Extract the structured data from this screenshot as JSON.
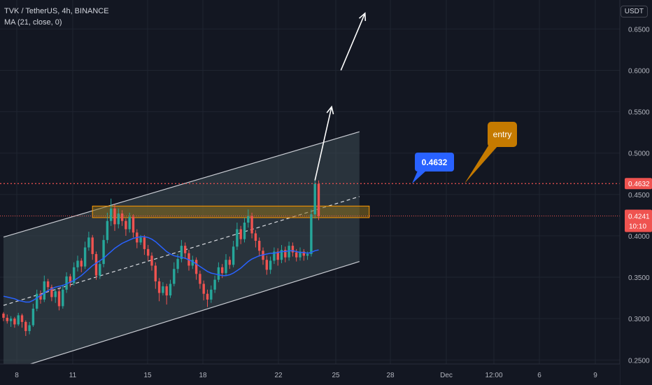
{
  "legend": {
    "symbol": "TVK / TetherUS, 4h, BINANCE",
    "indicator": "MA (21, close, 0)"
  },
  "currency": "USDT",
  "colors": {
    "background": "#131722",
    "up": "#26a69a",
    "down": "#ef5350",
    "ma": "#2962ff",
    "channel_fill": "#3d4a52",
    "zone_fill": "#8a6d1e",
    "zone_border": "#ff9800",
    "entry_bubble": "#c57a00",
    "price_bubble": "#2962ff",
    "price_line": "#ef5350"
  },
  "annotations": {
    "entry": "entry",
    "price_callout": "0.4632"
  },
  "price_labels": {
    "last": "0.4632",
    "current": "0.4241",
    "countdown": "10:10"
  },
  "chart_data": {
    "type": "candlestick",
    "x_ticks": [
      "8",
      "11",
      "15",
      "18",
      "22",
      "25",
      "28",
      "Dec",
      "12:00",
      "6",
      "9"
    ],
    "y_ticks": [
      "0.6500",
      "0.6000",
      "0.5500",
      "0.5000",
      "0.4500",
      "0.4000",
      "0.3500",
      "0.3000",
      "0.2500"
    ],
    "ylim": [
      0.235,
      0.685
    ],
    "levels": {
      "last_price": 0.4632,
      "current_price": 0.4241
    },
    "channel": {
      "upper": [
        [
          0,
          0.3985
        ],
        [
          96,
          0.5258
        ]
      ],
      "lower": [
        [
          0,
          0.235
        ],
        [
          96,
          0.369
        ]
      ],
      "mid": [
        [
          0,
          0.316
        ],
        [
          96,
          0.4475
        ]
      ]
    },
    "zone": {
      "x": [
        24,
        96
      ],
      "y": [
        0.422,
        0.436
      ]
    },
    "arrows": [
      {
        "from": [
          84,
          0.467
        ],
        "to": [
          88.5,
          0.556
        ]
      },
      {
        "from": [
          91,
          0.6
        ],
        "to": [
          97.5,
          0.669
        ]
      }
    ],
    "candles": [
      [
        0.306,
        0.301,
        0.308,
        0.297
      ],
      [
        0.301,
        0.297,
        0.305,
        0.294
      ],
      [
        0.297,
        0.3,
        0.303,
        0.29
      ],
      [
        0.3,
        0.293,
        0.302,
        0.289
      ],
      [
        0.293,
        0.304,
        0.307,
        0.291
      ],
      [
        0.304,
        0.296,
        0.306,
        0.289
      ],
      [
        0.296,
        0.285,
        0.298,
        0.279
      ],
      [
        0.285,
        0.292,
        0.296,
        0.281
      ],
      [
        0.292,
        0.312,
        0.318,
        0.29
      ],
      [
        0.312,
        0.33,
        0.335,
        0.309
      ],
      [
        0.33,
        0.323,
        0.334,
        0.318
      ],
      [
        0.323,
        0.345,
        0.352,
        0.32
      ],
      [
        0.345,
        0.338,
        0.348,
        0.332
      ],
      [
        0.338,
        0.326,
        0.341,
        0.321
      ],
      [
        0.326,
        0.333,
        0.336,
        0.319
      ],
      [
        0.333,
        0.315,
        0.336,
        0.31
      ],
      [
        0.315,
        0.335,
        0.341,
        0.312
      ],
      [
        0.335,
        0.351,
        0.356,
        0.331
      ],
      [
        0.351,
        0.343,
        0.354,
        0.338
      ],
      [
        0.343,
        0.362,
        0.368,
        0.34
      ],
      [
        0.362,
        0.37,
        0.376,
        0.357
      ],
      [
        0.37,
        0.363,
        0.373,
        0.356
      ],
      [
        0.363,
        0.386,
        0.393,
        0.36
      ],
      [
        0.386,
        0.398,
        0.405,
        0.382
      ],
      [
        0.398,
        0.378,
        0.401,
        0.371
      ],
      [
        0.378,
        0.352,
        0.381,
        0.347
      ],
      [
        0.352,
        0.366,
        0.37,
        0.348
      ],
      [
        0.366,
        0.395,
        0.401,
        0.362
      ],
      [
        0.395,
        0.418,
        0.428,
        0.391
      ],
      [
        0.418,
        0.433,
        0.445,
        0.412
      ],
      [
        0.433,
        0.414,
        0.438,
        0.406
      ],
      [
        0.414,
        0.427,
        0.433,
        0.409
      ],
      [
        0.427,
        0.418,
        0.431,
        0.412
      ],
      [
        0.418,
        0.408,
        0.421,
        0.4
      ],
      [
        0.408,
        0.423,
        0.428,
        0.404
      ],
      [
        0.423,
        0.404,
        0.426,
        0.398
      ],
      [
        0.404,
        0.392,
        0.408,
        0.385
      ],
      [
        0.392,
        0.398,
        0.401,
        0.389
      ],
      [
        0.398,
        0.384,
        0.401,
        0.377
      ],
      [
        0.384,
        0.376,
        0.389,
        0.37
      ],
      [
        0.376,
        0.364,
        0.38,
        0.358
      ],
      [
        0.364,
        0.345,
        0.368,
        0.336
      ],
      [
        0.345,
        0.331,
        0.349,
        0.321
      ],
      [
        0.331,
        0.339,
        0.344,
        0.328
      ],
      [
        0.339,
        0.328,
        0.342,
        0.317
      ],
      [
        0.328,
        0.342,
        0.347,
        0.325
      ],
      [
        0.342,
        0.36,
        0.368,
        0.339
      ],
      [
        0.36,
        0.372,
        0.378,
        0.355
      ],
      [
        0.372,
        0.388,
        0.395,
        0.368
      ],
      [
        0.388,
        0.379,
        0.392,
        0.372
      ],
      [
        0.379,
        0.364,
        0.383,
        0.358
      ],
      [
        0.364,
        0.371,
        0.376,
        0.36
      ],
      [
        0.371,
        0.354,
        0.374,
        0.347
      ],
      [
        0.354,
        0.342,
        0.358,
        0.336
      ],
      [
        0.342,
        0.33,
        0.346,
        0.322
      ],
      [
        0.33,
        0.323,
        0.335,
        0.314
      ],
      [
        0.323,
        0.335,
        0.34,
        0.319
      ],
      [
        0.335,
        0.347,
        0.352,
        0.331
      ],
      [
        0.347,
        0.362,
        0.368,
        0.344
      ],
      [
        0.362,
        0.355,
        0.366,
        0.349
      ],
      [
        0.355,
        0.371,
        0.378,
        0.352
      ],
      [
        0.371,
        0.365,
        0.375,
        0.36
      ],
      [
        0.365,
        0.387,
        0.394,
        0.362
      ],
      [
        0.387,
        0.408,
        0.416,
        0.383
      ],
      [
        0.408,
        0.396,
        0.412,
        0.39
      ],
      [
        0.396,
        0.416,
        0.422,
        0.392
      ],
      [
        0.416,
        0.424,
        0.432,
        0.41
      ],
      [
        0.424,
        0.403,
        0.428,
        0.397
      ],
      [
        0.403,
        0.394,
        0.407,
        0.386
      ],
      [
        0.394,
        0.382,
        0.398,
        0.375
      ],
      [
        0.382,
        0.371,
        0.386,
        0.365
      ],
      [
        0.371,
        0.359,
        0.376,
        0.353
      ],
      [
        0.359,
        0.37,
        0.375,
        0.354
      ],
      [
        0.37,
        0.381,
        0.386,
        0.366
      ],
      [
        0.381,
        0.371,
        0.385,
        0.364
      ],
      [
        0.371,
        0.383,
        0.389,
        0.367
      ],
      [
        0.383,
        0.374,
        0.387,
        0.368
      ],
      [
        0.374,
        0.388,
        0.393,
        0.37
      ],
      [
        0.388,
        0.38,
        0.392,
        0.375
      ],
      [
        0.38,
        0.374,
        0.384,
        0.369
      ],
      [
        0.374,
        0.381,
        0.386,
        0.37
      ],
      [
        0.381,
        0.376,
        0.384,
        0.37
      ],
      [
        0.376,
        0.378,
        0.381,
        0.371
      ],
      [
        0.378,
        0.426,
        0.432,
        0.375
      ],
      [
        0.426,
        0.463,
        0.469,
        0.421
      ],
      [
        0.463,
        0.424,
        0.467,
        0.419
      ]
    ],
    "ma": [
      0.327,
      0.326,
      0.325,
      0.324,
      0.322,
      0.321,
      0.32,
      0.32,
      0.322,
      0.325,
      0.328,
      0.331,
      0.334,
      0.336,
      0.338,
      0.339,
      0.34,
      0.342,
      0.344,
      0.346,
      0.349,
      0.352,
      0.356,
      0.36,
      0.364,
      0.367,
      0.37,
      0.373,
      0.377,
      0.381,
      0.385,
      0.388,
      0.391,
      0.393,
      0.395,
      0.397,
      0.398,
      0.399,
      0.399,
      0.398,
      0.396,
      0.393,
      0.389,
      0.385,
      0.381,
      0.378,
      0.376,
      0.375,
      0.374,
      0.373,
      0.371,
      0.369,
      0.366,
      0.363,
      0.36,
      0.357,
      0.355,
      0.354,
      0.353,
      0.352,
      0.352,
      0.353,
      0.355,
      0.358,
      0.361,
      0.365,
      0.369,
      0.372,
      0.374,
      0.376,
      0.377,
      0.378,
      0.379,
      0.379,
      0.38,
      0.381,
      0.381,
      0.382,
      0.382,
      0.381,
      0.38,
      0.38,
      0.379,
      0.38,
      0.382,
      0.383
    ]
  }
}
